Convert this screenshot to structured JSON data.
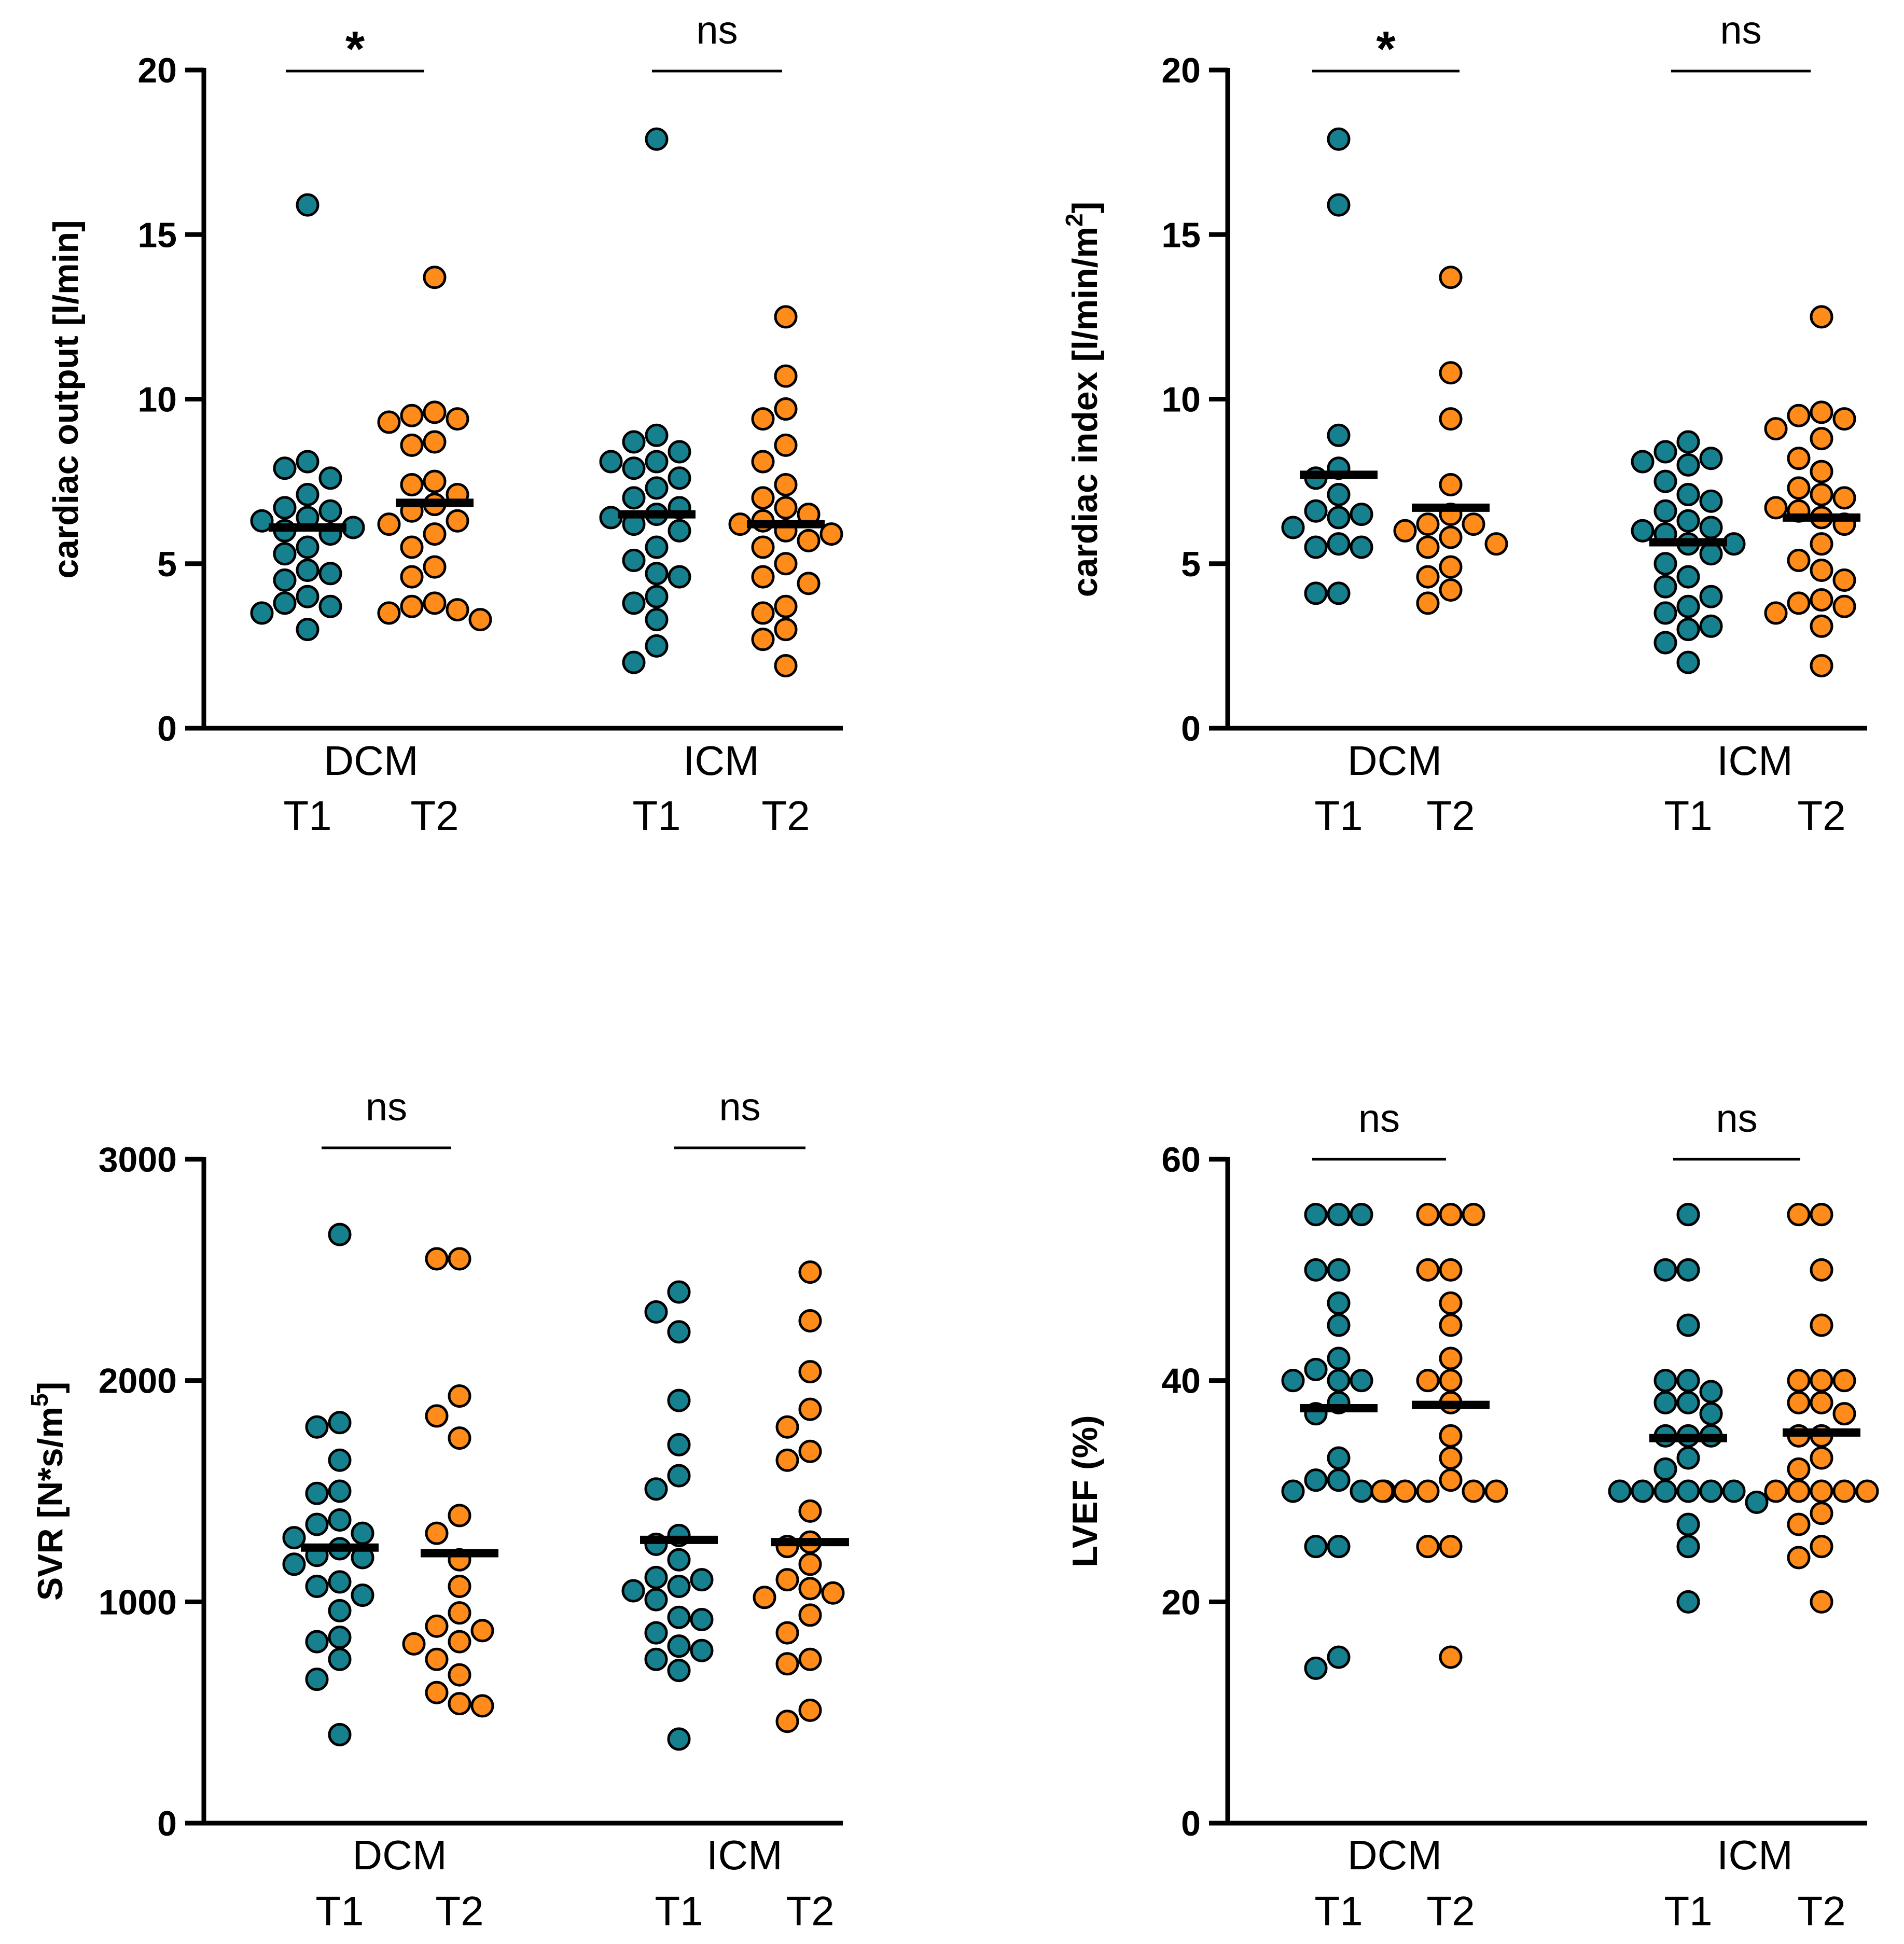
{
  "colors": {
    "T1": "#16808f",
    "T2": "#ff8c1a",
    "stroke": "#000000"
  },
  "chart_data": [
    {
      "type": "scatter",
      "ylabel": "cardiac output [l/min]",
      "ylim": [
        0,
        20
      ],
      "yticks": [
        "0",
        "5",
        "10",
        "15",
        "20"
      ],
      "ytick_values": [
        0,
        5,
        10,
        15,
        20
      ],
      "groups": [
        {
          "name": "DCM",
          "significance": "*",
          "series": [
            {
              "name": "T1",
              "mean": 6.1,
              "values": [
                15.9,
                8.1,
                7.9,
                7.6,
                7.1,
                6.7,
                6.6,
                6.4,
                6.3,
                6.1,
                6.0,
                5.9,
                5.5,
                5.3,
                4.8,
                4.7,
                4.5,
                4.0,
                3.8,
                3.7,
                3.5,
                3.0
              ]
            },
            {
              "name": "T2",
              "mean": 6.85,
              "values": [
                13.7,
                9.6,
                9.5,
                9.4,
                9.3,
                8.7,
                8.6,
                7.5,
                7.4,
                7.1,
                6.8,
                6.6,
                6.3,
                6.2,
                5.9,
                5.5,
                4.9,
                4.6,
                3.8,
                3.7,
                3.6,
                3.5,
                3.3
              ]
            }
          ]
        },
        {
          "name": "ICM",
          "significance": "ns",
          "series": [
            {
              "name": "T1",
              "mean": 6.5,
              "values": [
                17.9,
                8.9,
                8.7,
                8.4,
                8.1,
                8.1,
                7.9,
                7.6,
                7.3,
                7.0,
                6.7,
                6.5,
                6.4,
                6.2,
                6.0,
                5.5,
                5.1,
                4.7,
                4.6,
                4.0,
                3.8,
                3.3,
                2.5,
                2.0
              ]
            },
            {
              "name": "T2",
              "mean": 6.2,
              "values": [
                12.5,
                10.7,
                9.7,
                9.4,
                8.6,
                8.1,
                7.4,
                7.0,
                6.7,
                6.5,
                6.3,
                6.2,
                6.0,
                5.9,
                5.7,
                5.5,
                5.0,
                4.6,
                4.4,
                3.7,
                3.5,
                3.0,
                2.7,
                1.9
              ]
            }
          ]
        }
      ]
    },
    {
      "type": "scatter",
      "ylabel": "cardiac index [l/min/m",
      "ylabel_sup": "2",
      "ylabel_end": "]",
      "ylim": [
        0,
        20
      ],
      "yticks": [
        "0",
        "5",
        "10",
        "15",
        "20"
      ],
      "ytick_values": [
        0,
        5,
        10,
        15,
        20
      ],
      "groups": [
        {
          "name": "DCM",
          "significance": "*",
          "series": [
            {
              "name": "T1",
              "mean": 7.7,
              "values": [
                17.9,
                15.9,
                8.9,
                7.9,
                7.6,
                7.1,
                6.6,
                6.5,
                6.4,
                6.1,
                5.6,
                5.5,
                5.5,
                4.1,
                4.1
              ]
            },
            {
              "name": "T2",
              "mean": 6.7,
              "values": [
                13.7,
                10.8,
                9.4,
                7.4,
                6.5,
                6.2,
                6.2,
                6.0,
                5.8,
                5.6,
                5.5,
                4.9,
                4.6,
                4.2,
                3.8
              ]
            }
          ]
        },
        {
          "name": "ICM",
          "significance": "ns",
          "series": [
            {
              "name": "T1",
              "mean": 5.65,
              "values": [
                8.7,
                8.4,
                8.2,
                8.1,
                8.0,
                7.5,
                7.1,
                6.9,
                6.6,
                6.3,
                6.1,
                6.0,
                5.9,
                5.6,
                5.6,
                5.3,
                5.0,
                4.6,
                4.3,
                4.0,
                3.7,
                3.5,
                3.1,
                3.0,
                2.6,
                2.0
              ]
            },
            {
              "name": "T2",
              "mean": 6.4,
              "values": [
                12.5,
                9.6,
                9.5,
                9.4,
                9.1,
                8.8,
                8.2,
                7.8,
                7.3,
                7.1,
                7.0,
                6.7,
                6.6,
                6.4,
                6.2,
                5.6,
                5.1,
                4.8,
                4.5,
                3.9,
                3.8,
                3.7,
                3.5,
                3.1,
                1.9
              ]
            }
          ]
        }
      ]
    },
    {
      "type": "scatter",
      "ylabel": "SVR [N*s/m",
      "ylabel_sup": "5",
      "ylabel_end": "]",
      "ylim": [
        0,
        3000
      ],
      "yticks": [
        "0",
        "1000",
        "2000",
        "3000"
      ],
      "ytick_values": [
        0,
        1000,
        2000,
        3000
      ],
      "groups": [
        {
          "name": "DCM",
          "significance": "ns",
          "series": [
            {
              "name": "T1",
              "mean": 1245,
              "values": [
                2660,
                1810,
                1790,
                1640,
                1500,
                1490,
                1370,
                1350,
                1310,
                1290,
                1240,
                1210,
                1200,
                1170,
                1090,
                1070,
                1030,
                960,
                840,
                820,
                740,
                650,
                400
              ]
            },
            {
              "name": "T2",
              "mean": 1220,
              "values": [
                2550,
                2550,
                1930,
                1840,
                1740,
                1390,
                1310,
                1190,
                1070,
                950,
                890,
                870,
                820,
                810,
                740,
                670,
                590,
                540,
                530
              ]
            }
          ]
        },
        {
          "name": "ICM",
          "significance": "ns",
          "series": [
            {
              "name": "T1",
              "mean": 1280,
              "values": [
                2400,
                2310,
                2220,
                1910,
                1710,
                1570,
                1510,
                1300,
                1260,
                1190,
                1110,
                1100,
                1070,
                1050,
                1010,
                930,
                920,
                860,
                800,
                780,
                740,
                690,
                380
              ]
            },
            {
              "name": "T2",
              "mean": 1270,
              "values": [
                2490,
                2270,
                2040,
                1870,
                1790,
                1680,
                1640,
                1410,
                1270,
                1250,
                1170,
                1100,
                1060,
                1040,
                1020,
                940,
                860,
                740,
                720,
                510,
                460
              ]
            }
          ]
        }
      ]
    },
    {
      "type": "scatter",
      "ylabel": "LVEF (%)",
      "ylim": [
        0,
        60
      ],
      "yticks": [
        "0",
        "20",
        "40",
        "60"
      ],
      "ytick_values": [
        0,
        20,
        40,
        60
      ],
      "groups": [
        {
          "name": "DCM",
          "significance": "ns",
          "series": [
            {
              "name": "T1",
              "mean": 37.5,
              "values": [
                55,
                55,
                55,
                50,
                50,
                47,
                45,
                42,
                41,
                40,
                40,
                40,
                38,
                37,
                33,
                31,
                31,
                30,
                30,
                30,
                25,
                25,
                15,
                14
              ]
            },
            {
              "name": "T2",
              "mean": 37.8,
              "values": [
                55,
                55,
                55,
                50,
                50,
                47,
                45,
                42,
                40,
                40,
                38,
                35,
                33,
                31,
                30,
                30,
                30,
                30,
                30,
                25,
                25,
                15
              ]
            }
          ]
        },
        {
          "name": "ICM",
          "significance": "ns",
          "series": [
            {
              "name": "T1",
              "mean": 34.8,
              "values": [
                55,
                50,
                50,
                45,
                40,
                40,
                39,
                38,
                38,
                37,
                35,
                35,
                35,
                33,
                32,
                30,
                30,
                30,
                30,
                30,
                30,
                29,
                27,
                25,
                20
              ]
            },
            {
              "name": "T2",
              "mean": 35.3,
              "values": [
                55,
                55,
                50,
                45,
                40,
                40,
                40,
                38,
                38,
                37,
                35,
                35,
                33,
                32,
                30,
                30,
                30,
                30,
                30,
                28,
                27,
                25,
                24,
                20
              ]
            }
          ]
        }
      ]
    }
  ]
}
